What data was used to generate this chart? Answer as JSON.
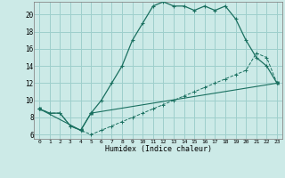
{
  "xlabel": "Humidex (Indice chaleur)",
  "bg_color": "#cceae7",
  "grid_color": "#9ecfcc",
  "line_color": "#1a7060",
  "xlim": [
    -0.5,
    23.5
  ],
  "ylim": [
    5.5,
    21.5
  ],
  "xticks": [
    0,
    1,
    2,
    3,
    4,
    5,
    6,
    7,
    8,
    9,
    10,
    11,
    12,
    13,
    14,
    15,
    16,
    17,
    18,
    19,
    20,
    21,
    22,
    23
  ],
  "yticks": [
    6,
    8,
    10,
    12,
    14,
    16,
    18,
    20
  ],
  "line1_x": [
    0,
    1,
    2,
    3,
    4,
    5,
    6,
    7,
    8,
    9,
    10,
    11,
    12,
    13,
    14,
    15,
    16,
    17,
    18,
    19,
    20,
    21,
    22,
    23
  ],
  "line1_y": [
    9,
    8.5,
    8.5,
    7,
    6.5,
    8.5,
    10,
    12,
    14,
    17,
    19,
    21,
    21.5,
    21,
    21,
    20.5,
    21,
    20.5,
    21,
    19.5,
    17,
    15,
    14,
    12
  ],
  "line2_x": [
    0,
    1,
    2,
    3,
    4,
    5,
    6,
    7,
    8,
    9,
    10,
    11,
    12,
    13,
    14,
    15,
    16,
    17,
    18,
    19,
    20,
    21,
    22,
    23
  ],
  "line2_y": [
    9,
    8.5,
    8.5,
    7,
    6.5,
    6,
    6.5,
    7,
    7.5,
    8,
    8.5,
    9,
    9.5,
    10,
    10.5,
    11,
    11.5,
    12,
    12.5,
    13,
    13.5,
    15.5,
    15,
    12
  ],
  "line3_x": [
    0,
    4,
    5,
    23
  ],
  "line3_y": [
    9,
    6.5,
    8.5,
    12
  ]
}
